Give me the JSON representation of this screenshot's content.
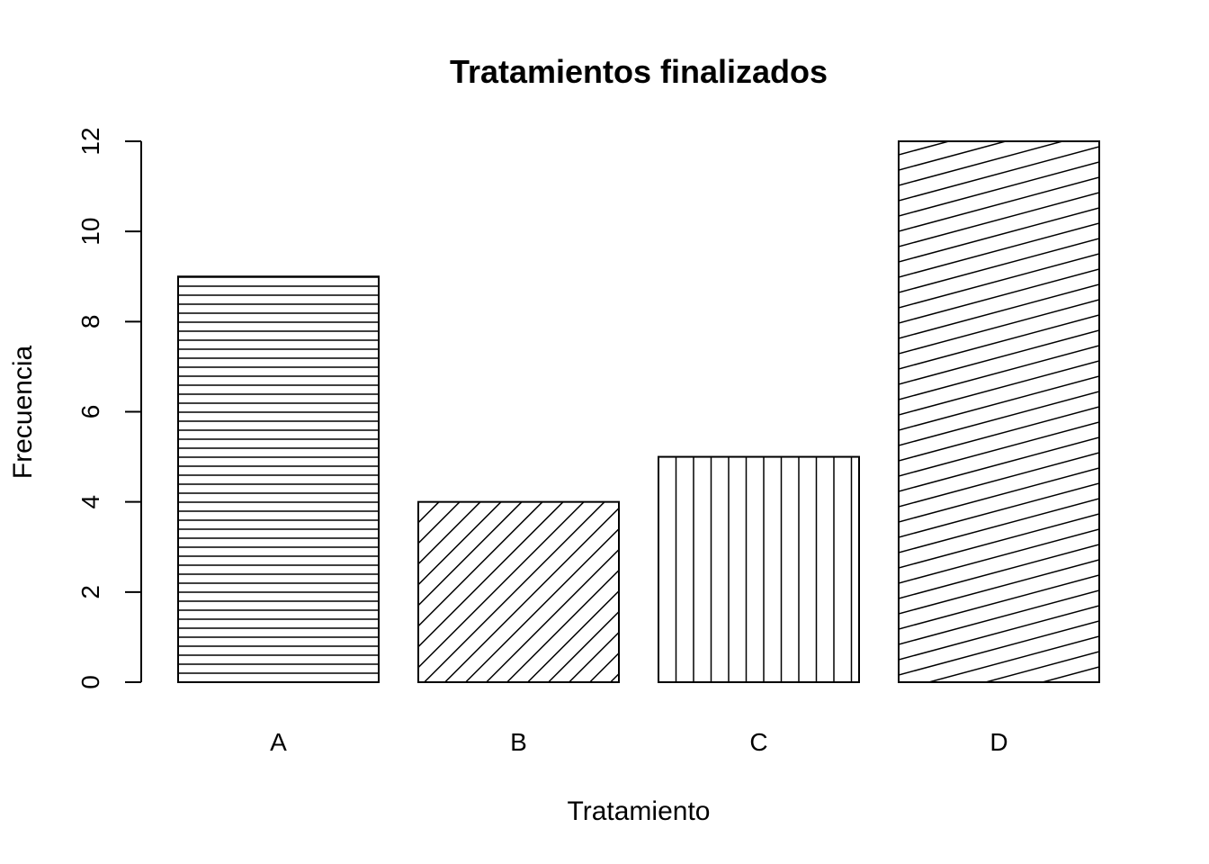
{
  "chart_data": {
    "type": "bar",
    "title": "Tratamientos finalizados",
    "xlabel": "Tratamiento",
    "ylabel": "Frecuencia",
    "categories": [
      "A",
      "B",
      "C",
      "D"
    ],
    "values": [
      9,
      4,
      5,
      12
    ],
    "ylim": [
      0,
      12
    ],
    "yticks": [
      "0",
      "2",
      "4",
      "6",
      "8",
      "10",
      "12"
    ],
    "bar_fill_patterns": [
      "horizontal-lines",
      "diagonal-lines-45",
      "vertical-lines",
      "diagonal-lines-shallow"
    ],
    "bar_color": "#ffffff",
    "line_color": "#000000",
    "grid": false,
    "legend": "none"
  }
}
